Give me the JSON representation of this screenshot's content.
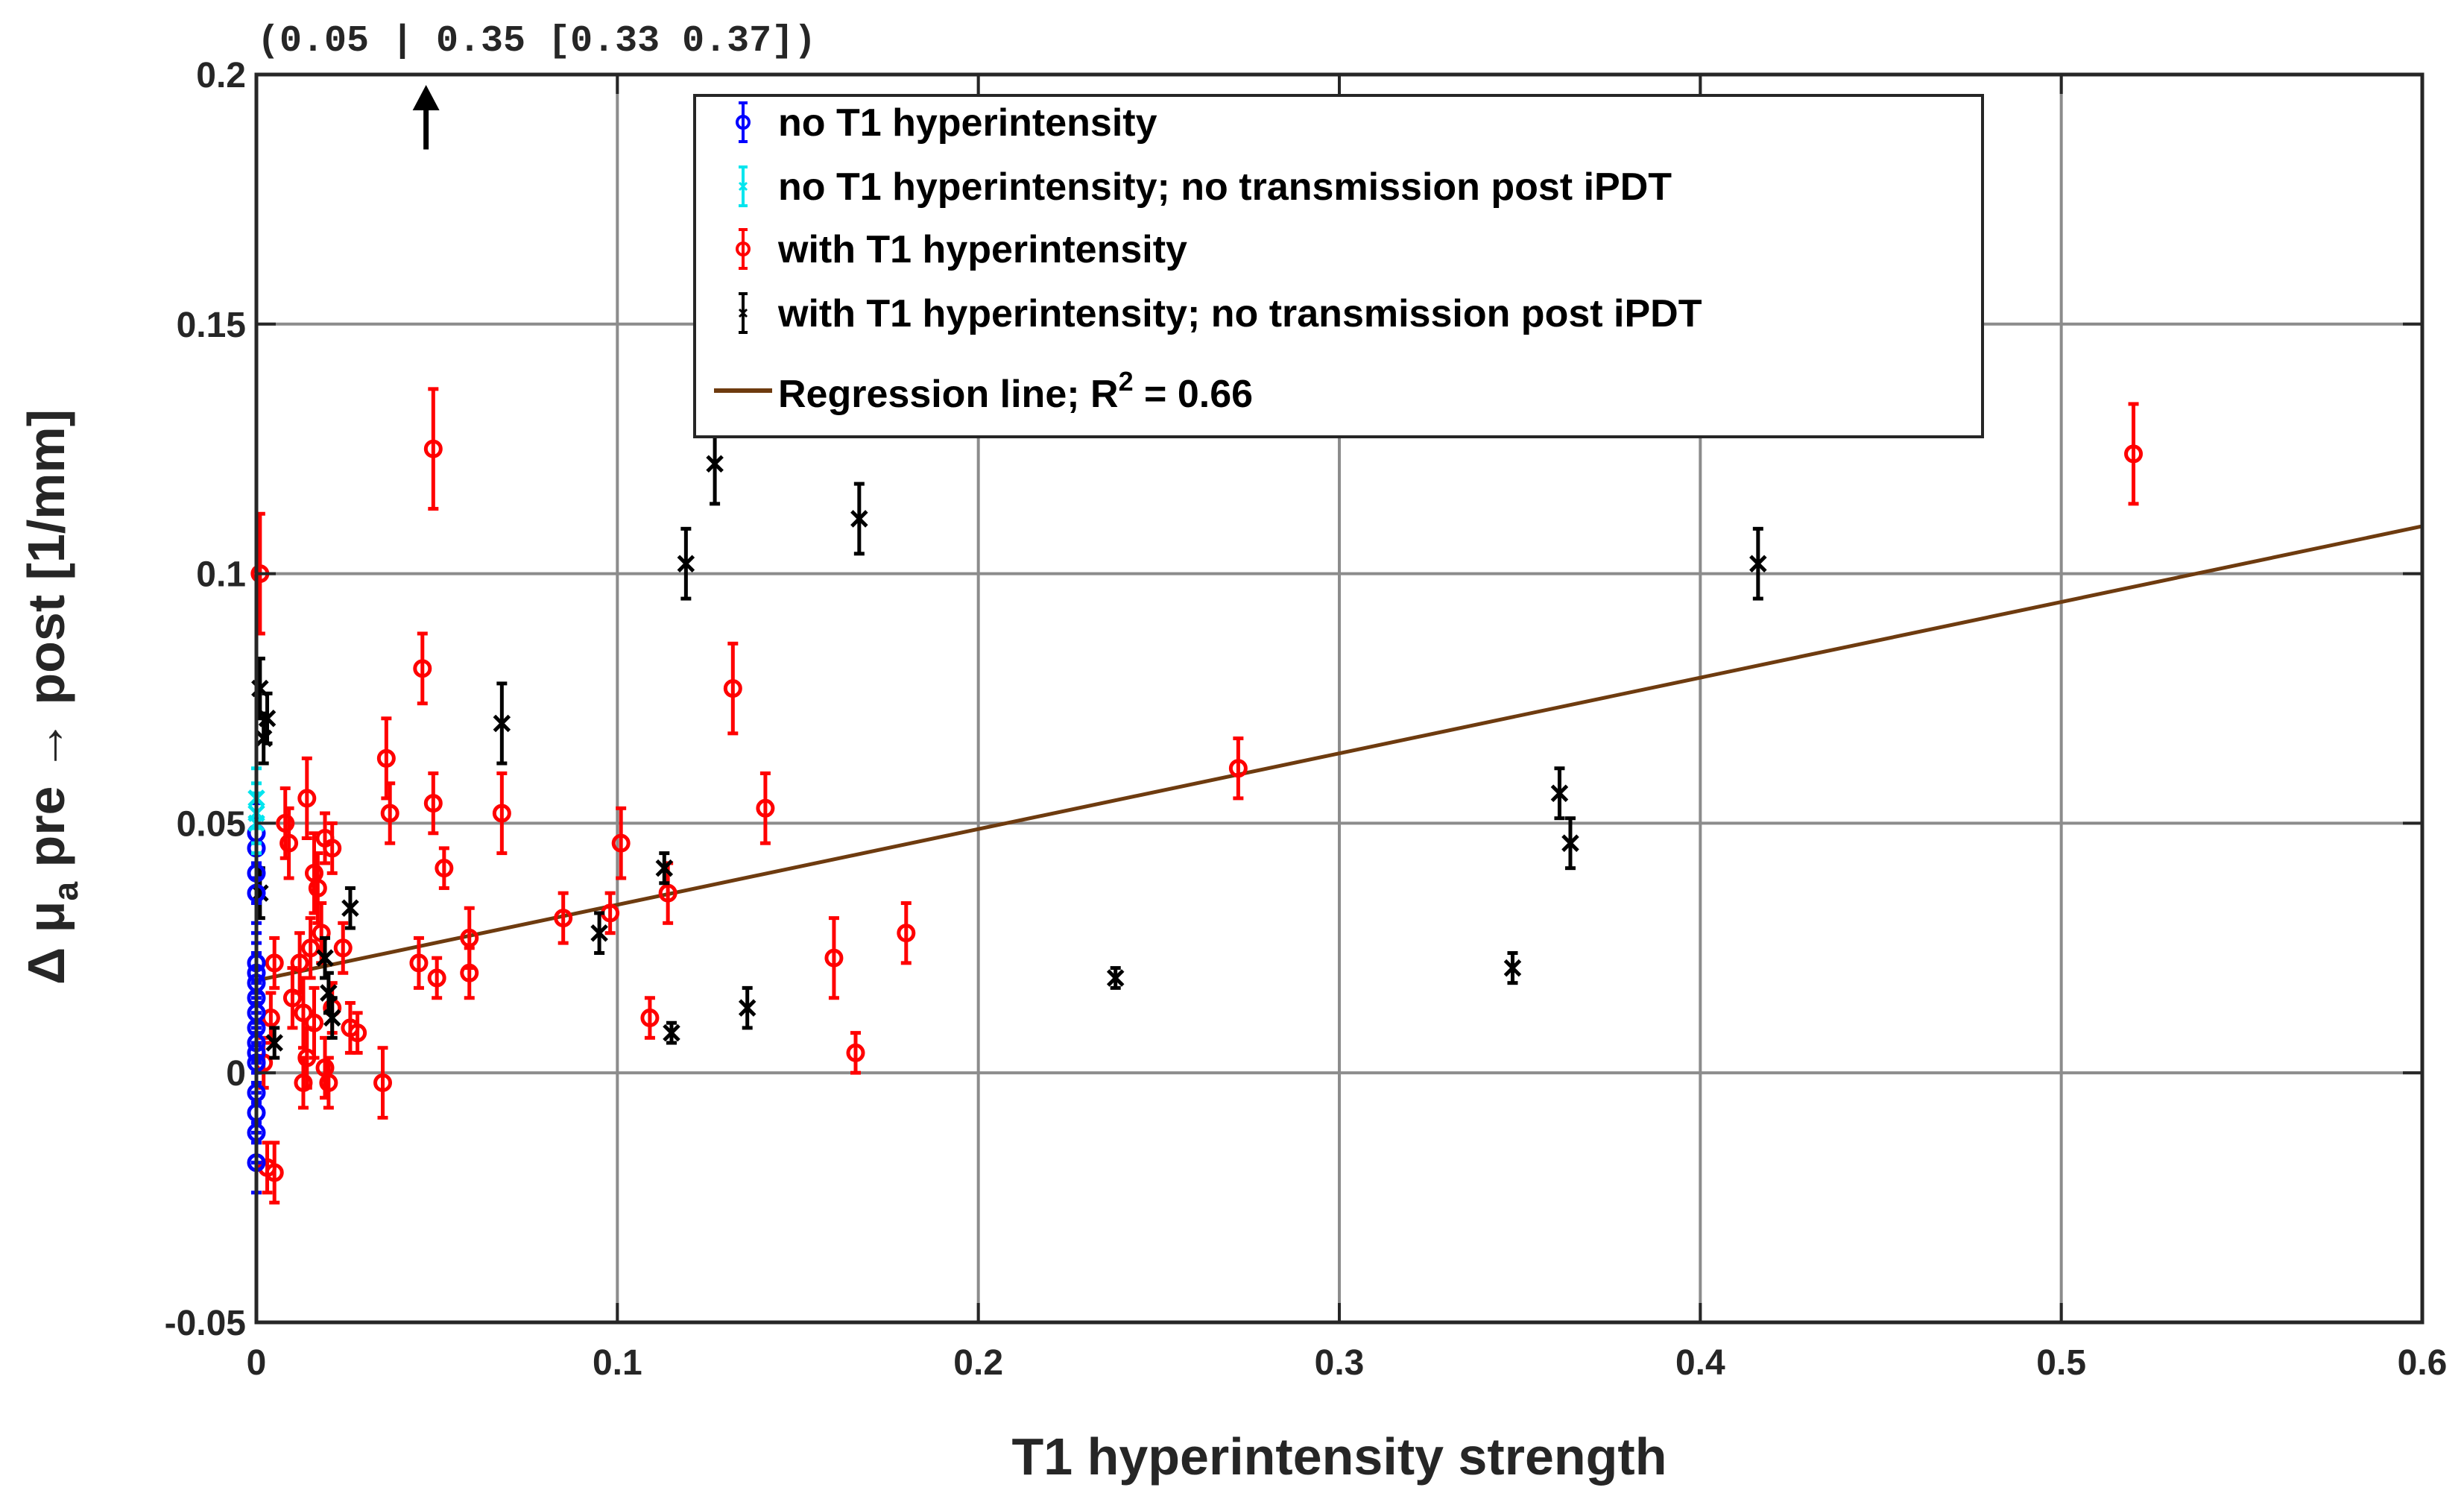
{
  "chart_data": {
    "type": "scatter",
    "title": "",
    "xlabel": "T1 hyperintensity strength",
    "ylabel": {
      "prefix": "Δ ",
      "mu": "μ",
      "sub": "a",
      "suffix": " pre → post [1/mm]"
    },
    "xlim": [
      0,
      0.6
    ],
    "ylim": [
      -0.05,
      0.2
    ],
    "xticks": [
      0,
      0.1,
      0.2,
      0.3,
      0.4,
      0.5,
      0.6
    ],
    "xtick_labels": [
      "0",
      "0.1",
      "0.2",
      "0.3",
      "0.4",
      "0.5",
      "0.6"
    ],
    "yticks": [
      -0.05,
      0,
      0.05,
      0.1,
      0.15,
      0.2
    ],
    "ytick_labels": [
      "-0.05",
      "0",
      "0.05",
      "0.1",
      "0.15",
      "0.2"
    ],
    "grid": true,
    "annotation": {
      "text": "(0.05 | 0.35 [0.33 0.37])",
      "x": 0.047,
      "y_from": 0.185,
      "y_to": 0.2
    },
    "series": [
      {
        "name": "no T1 hyperintensity",
        "color": "#0000ff",
        "marker": "circle",
        "points": [
          {
            "x": 0.0,
            "y": 0.048,
            "e": 0.006
          },
          {
            "x": 0.0,
            "y": 0.045,
            "e": 0.006
          },
          {
            "x": 0.0,
            "y": 0.04,
            "e": 0.006
          },
          {
            "x": 0.0,
            "y": 0.036,
            "e": 0.006
          },
          {
            "x": 0.0,
            "y": 0.022,
            "e": 0.006
          },
          {
            "x": 0.0,
            "y": 0.02,
            "e": 0.006
          },
          {
            "x": 0.0,
            "y": 0.018,
            "e": 0.006
          },
          {
            "x": 0.0,
            "y": 0.015,
            "e": 0.006
          },
          {
            "x": 0.0,
            "y": 0.012,
            "e": 0.006
          },
          {
            "x": 0.0,
            "y": 0.009,
            "e": 0.006
          },
          {
            "x": 0.0,
            "y": 0.006,
            "e": 0.006
          },
          {
            "x": 0.0,
            "y": 0.004,
            "e": 0.006
          },
          {
            "x": 0.0,
            "y": 0.002,
            "e": 0.006
          },
          {
            "x": 0.0,
            "y": -0.004,
            "e": 0.006
          },
          {
            "x": 0.0,
            "y": -0.008,
            "e": 0.006
          },
          {
            "x": 0.0,
            "y": -0.012,
            "e": 0.006
          },
          {
            "x": 0.0,
            "y": -0.018,
            "e": 0.006
          }
        ]
      },
      {
        "name": "no T1 hyperintensity; no transmission post iPDT",
        "color": "#00e5ee",
        "marker": "cross",
        "points": [
          {
            "x": 0.0,
            "y": 0.055,
            "e": 0.006
          },
          {
            "x": 0.0,
            "y": 0.052,
            "e": 0.006
          },
          {
            "x": 0.0,
            "y": 0.05,
            "e": 0.006
          }
        ]
      },
      {
        "name": "with T1 hyperintensity",
        "color": "#ff0000",
        "marker": "circle",
        "points": [
          {
            "x": 0.001,
            "y": 0.1,
            "e": 0.012
          },
          {
            "x": 0.049,
            "y": 0.125,
            "e": 0.012
          },
          {
            "x": 0.52,
            "y": 0.124,
            "e": 0.01
          },
          {
            "x": 0.046,
            "y": 0.081,
            "e": 0.007
          },
          {
            "x": 0.132,
            "y": 0.077,
            "e": 0.009
          },
          {
            "x": 0.272,
            "y": 0.061,
            "e": 0.006
          },
          {
            "x": 0.036,
            "y": 0.063,
            "e": 0.008
          },
          {
            "x": 0.037,
            "y": 0.052,
            "e": 0.006
          },
          {
            "x": 0.049,
            "y": 0.054,
            "e": 0.006
          },
          {
            "x": 0.068,
            "y": 0.052,
            "e": 0.008
          },
          {
            "x": 0.141,
            "y": 0.053,
            "e": 0.007
          },
          {
            "x": 0.101,
            "y": 0.046,
            "e": 0.007
          },
          {
            "x": 0.052,
            "y": 0.041,
            "e": 0.004
          },
          {
            "x": 0.114,
            "y": 0.036,
            "e": 0.006
          },
          {
            "x": 0.085,
            "y": 0.031,
            "e": 0.005
          },
          {
            "x": 0.098,
            "y": 0.032,
            "e": 0.004
          },
          {
            "x": 0.18,
            "y": 0.028,
            "e": 0.006
          },
          {
            "x": 0.059,
            "y": 0.027,
            "e": 0.006
          },
          {
            "x": 0.045,
            "y": 0.022,
            "e": 0.005
          },
          {
            "x": 0.05,
            "y": 0.019,
            "e": 0.004
          },
          {
            "x": 0.059,
            "y": 0.02,
            "e": 0.005
          },
          {
            "x": 0.16,
            "y": 0.023,
            "e": 0.008
          },
          {
            "x": 0.109,
            "y": 0.011,
            "e": 0.004
          },
          {
            "x": 0.166,
            "y": 0.004,
            "e": 0.004
          },
          {
            "x": 0.035,
            "y": -0.002,
            "e": 0.007
          },
          {
            "x": 0.008,
            "y": 0.05,
            "e": 0.007
          },
          {
            "x": 0.014,
            "y": 0.055,
            "e": 0.008
          },
          {
            "x": 0.009,
            "y": 0.046,
            "e": 0.007
          },
          {
            "x": 0.019,
            "y": 0.047,
            "e": 0.005
          },
          {
            "x": 0.016,
            "y": 0.04,
            "e": 0.008
          },
          {
            "x": 0.017,
            "y": 0.037,
            "e": 0.007
          },
          {
            "x": 0.021,
            "y": 0.045,
            "e": 0.005
          },
          {
            "x": 0.005,
            "y": 0.022,
            "e": 0.005
          },
          {
            "x": 0.012,
            "y": 0.022,
            "e": 0.006
          },
          {
            "x": 0.015,
            "y": 0.025,
            "e": 0.006
          },
          {
            "x": 0.024,
            "y": 0.025,
            "e": 0.005
          },
          {
            "x": 0.01,
            "y": 0.015,
            "e": 0.006
          },
          {
            "x": 0.013,
            "y": 0.012,
            "e": 0.007
          },
          {
            "x": 0.016,
            "y": 0.01,
            "e": 0.007
          },
          {
            "x": 0.021,
            "y": 0.013,
            "e": 0.005
          },
          {
            "x": 0.026,
            "y": 0.009,
            "e": 0.005
          },
          {
            "x": 0.028,
            "y": 0.008,
            "e": 0.004
          },
          {
            "x": 0.014,
            "y": 0.003,
            "e": 0.006
          },
          {
            "x": 0.019,
            "y": 0.001,
            "e": 0.006
          },
          {
            "x": 0.013,
            "y": -0.002,
            "e": 0.005
          },
          {
            "x": 0.02,
            "y": -0.002,
            "e": 0.005
          },
          {
            "x": 0.003,
            "y": -0.019,
            "e": 0.005
          },
          {
            "x": 0.005,
            "y": -0.02,
            "e": 0.006
          },
          {
            "x": 0.002,
            "y": 0.002,
            "e": 0.005
          },
          {
            "x": 0.004,
            "y": 0.011,
            "e": 0.005
          },
          {
            "x": 0.018,
            "y": 0.028,
            "e": 0.006
          }
        ]
      },
      {
        "name": "with T1 hyperintensity; no transmission post iPDT",
        "color": "#000000",
        "marker": "cross",
        "points": [
          {
            "x": 0.127,
            "y": 0.122,
            "e": 0.008
          },
          {
            "x": 0.167,
            "y": 0.111,
            "e": 0.007
          },
          {
            "x": 0.119,
            "y": 0.102,
            "e": 0.007
          },
          {
            "x": 0.416,
            "y": 0.102,
            "e": 0.007
          },
          {
            "x": 0.001,
            "y": 0.077,
            "e": 0.006
          },
          {
            "x": 0.003,
            "y": 0.071,
            "e": 0.005
          },
          {
            "x": 0.002,
            "y": 0.067,
            "e": 0.005
          },
          {
            "x": 0.068,
            "y": 0.07,
            "e": 0.008
          },
          {
            "x": 0.361,
            "y": 0.056,
            "e": 0.005
          },
          {
            "x": 0.364,
            "y": 0.046,
            "e": 0.005
          },
          {
            "x": 0.113,
            "y": 0.041,
            "e": 0.003
          },
          {
            "x": 0.001,
            "y": 0.036,
            "e": 0.005
          },
          {
            "x": 0.026,
            "y": 0.033,
            "e": 0.004
          },
          {
            "x": 0.095,
            "y": 0.028,
            "e": 0.004
          },
          {
            "x": 0.019,
            "y": 0.023,
            "e": 0.004
          },
          {
            "x": 0.348,
            "y": 0.021,
            "e": 0.003
          },
          {
            "x": 0.238,
            "y": 0.019,
            "e": 0.002
          },
          {
            "x": 0.02,
            "y": 0.016,
            "e": 0.004
          },
          {
            "x": 0.136,
            "y": 0.013,
            "e": 0.004
          },
          {
            "x": 0.021,
            "y": 0.011,
            "e": 0.004
          },
          {
            "x": 0.115,
            "y": 0.008,
            "e": 0.002
          },
          {
            "x": 0.005,
            "y": 0.006,
            "e": 0.003
          }
        ]
      },
      {
        "name": "Regression line; R",
        "name_sup": "2",
        "name_tail": " = 0.66",
        "color": "#6e3b0f",
        "type": "line",
        "x": [
          0.0,
          0.6
        ],
        "y": [
          0.0185,
          0.1095
        ]
      }
    ]
  }
}
